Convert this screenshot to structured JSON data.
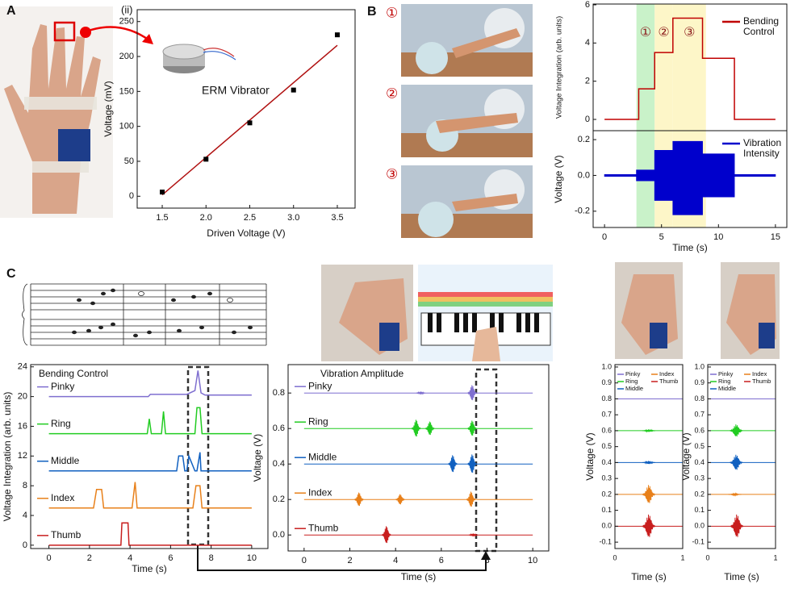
{
  "panel_labels": [
    "A",
    "B",
    "C"
  ],
  "photo_labels": [
    "①",
    "②",
    "③"
  ],
  "chart_data": [
    {
      "type": "scatter",
      "annotations": [
        "(ii)",
        "ERM Vibrator"
      ],
      "xlabel": "Driven Voltage (V)",
      "ylabel": "Voltage (mV)",
      "x": [
        1.5,
        2,
        2.5,
        3,
        3.5
      ],
      "values": [
        6,
        53,
        105,
        152,
        231
      ],
      "color": "#000000",
      "fit": {
        "x": [
          1.5,
          3.5
        ],
        "values": [
          2,
          216
        ],
        "color": "#b01010"
      },
      "xlim": [
        1.214,
        3.703
      ],
      "xticks": [
        1.5,
        {
          "value": 2,
          "label": "2.0"
        },
        2.5,
        {
          "value": 3,
          "label": "3.0"
        },
        3.5
      ],
      "ylim": [
        -17,
        267
      ],
      "yticks": [
        0,
        50,
        100,
        150,
        200,
        250
      ]
    },
    {
      "type": "line",
      "ylabel": "Voltage Integration (arb. units)",
      "xlim": [
        -1,
        16
      ],
      "ylim": [
        -0.59,
        6.04
      ],
      "yticks": [
        0,
        2,
        4,
        6
      ],
      "legend": "upper right",
      "regions": [
        {
          "xlim": [
            2.8,
            4.4
          ],
          "color": "#c9f2c9",
          "label": "①"
        },
        {
          "xlim": [
            4.4,
            6
          ],
          "color": "#fdf6c8",
          "label": "②"
        },
        {
          "xlim": [
            6,
            8.9
          ],
          "color": "#fdf6c8",
          "label": "③"
        }
      ],
      "series": [
        {
          "name": "Bending Control",
          "color": "#c00000",
          "x": [
            0,
            3,
            3,
            4.4,
            4.4,
            6,
            6,
            8.6,
            8.6,
            11.4,
            11.4,
            15
          ],
          "values": [
            0,
            0,
            1.6,
            1.6,
            3.5,
            3.5,
            5.3,
            5.3,
            3.2,
            3.2,
            0,
            0
          ]
        }
      ]
    },
    {
      "type": "area",
      "xlabel": "Time (s)",
      "ylabel": "Voltage (V)",
      "xlim": [
        -1,
        16
      ],
      "xticks": [
        0,
        5,
        10,
        15
      ],
      "ylim": [
        -0.291,
        0.25
      ],
      "yticks": [
        -0.2,
        {
          "value": 0,
          "label": "0.0"
        },
        0.2
      ],
      "legend": "upper right",
      "series": [
        {
          "name": "Vibration Intensity",
          "color": "#0000cc",
          "x": [
            0,
            2.8,
            2.8,
            4.4,
            4.4,
            6,
            6,
            8.6,
            8.6,
            11.4,
            11.4,
            15
          ],
          "upper": [
            0.005,
            0.005,
            0.03,
            0.03,
            0.14,
            0.14,
            0.19,
            0.19,
            0.12,
            0.12,
            0.005,
            0.005
          ],
          "lower": [
            -0.005,
            -0.005,
            -0.03,
            -0.03,
            -0.14,
            -0.14,
            -0.22,
            -0.22,
            -0.12,
            -0.12,
            -0.005,
            -0.005
          ]
        }
      ]
    },
    {
      "type": "line",
      "title": "Bending Control",
      "xlabel": "Time (s)",
      "ylabel": "Voltage Integration (arb. units)",
      "xlim": [
        -0.9,
        10.8
      ],
      "xticks": [
        0,
        2,
        4,
        6,
        8,
        10
      ],
      "ylim": [
        -0.45,
        24.3
      ],
      "yticks": [
        0,
        4,
        8,
        12,
        16,
        20,
        24
      ],
      "legend": "inline",
      "series": [
        {
          "name": "Pinky",
          "color": "#7f6fd0",
          "x": [
            0,
            4.9,
            5.0,
            6.8,
            7.2,
            7.35,
            7.5,
            7.7,
            10
          ],
          "values": [
            20,
            20,
            20.3,
            20.3,
            20.8,
            23.5,
            20.5,
            20.2,
            20.2
          ]
        },
        {
          "name": "Ring",
          "color": "#22cc22",
          "x": [
            0,
            4.85,
            4.95,
            5.05,
            5.55,
            5.65,
            5.75,
            7.2,
            7.3,
            7.45,
            7.55,
            10
          ],
          "values": [
            15,
            15,
            17,
            15,
            15,
            18,
            15,
            15,
            18.5,
            18.5,
            15,
            15
          ]
        },
        {
          "name": "Middle",
          "color": "#1060c0",
          "x": [
            0,
            6.3,
            6.4,
            6.6,
            6.7,
            6.8,
            6.9,
            7.2,
            7.3,
            7.45,
            7.5,
            10
          ],
          "values": [
            10,
            10,
            12,
            12,
            10,
            10,
            12,
            10,
            10,
            12.5,
            10,
            10
          ]
        },
        {
          "name": "Index",
          "color": "#e8801a",
          "x": [
            0,
            2.2,
            2.35,
            2.6,
            2.7,
            4.1,
            4.25,
            4.35,
            7.1,
            7.25,
            7.45,
            7.55,
            10
          ],
          "values": [
            5,
            5,
            7.5,
            7.5,
            5,
            5,
            8.5,
            5,
            5,
            8,
            8,
            5,
            5
          ]
        },
        {
          "name": "Thumb",
          "color": "#c81e1e",
          "x": [
            0,
            3.55,
            3.6,
            3.9,
            3.95,
            10
          ],
          "values": [
            0,
            0,
            3,
            3,
            0,
            0
          ]
        }
      ]
    },
    {
      "type": "waveform",
      "title": "Vibration Amplitude",
      "xlabel": "Time (s)",
      "ylabel": "Voltage (V)",
      "xlim": [
        -0.7,
        10.7
      ],
      "xticks": [
        0,
        2,
        4,
        6,
        8,
        10
      ],
      "ylim": [
        -0.09,
        0.96
      ],
      "yticks": [
        {
          "value": 0,
          "label": "0.0"
        },
        0.2,
        0.4,
        0.6,
        0.8
      ],
      "legend": "inline",
      "series": [
        {
          "name": "Pinky",
          "color": "#7f6fd0",
          "baseline": 0.8,
          "bursts": [
            {
              "x": 7.35,
              "amplitude": 0.045
            },
            {
              "x": 5.1,
              "amplitude": 0.008
            }
          ]
        },
        {
          "name": "Ring",
          "color": "#22cc22",
          "baseline": 0.6,
          "bursts": [
            {
              "x": 4.9,
              "amplitude": 0.05
            },
            {
              "x": 5.5,
              "amplitude": 0.04
            },
            {
              "x": 7.35,
              "amplitude": 0.045
            }
          ]
        },
        {
          "name": "Middle",
          "color": "#1060c0",
          "baseline": 0.4,
          "bursts": [
            {
              "x": 6.5,
              "amplitude": 0.05
            },
            {
              "x": 7.35,
              "amplitude": 0.055
            }
          ]
        },
        {
          "name": "Index",
          "color": "#e8801a",
          "baseline": 0.2,
          "bursts": [
            {
              "x": 2.4,
              "amplitude": 0.04
            },
            {
              "x": 4.2,
              "amplitude": 0.03
            },
            {
              "x": 7.3,
              "amplitude": 0.045
            }
          ]
        },
        {
          "name": "Thumb",
          "color": "#c81e1e",
          "baseline": 0,
          "bursts": [
            {
              "x": 3.6,
              "amplitude": 0.05
            },
            {
              "x": 7.4,
              "amplitude": 0.008
            }
          ]
        }
      ]
    },
    {
      "type": "waveform",
      "xlabel": "Time (s)",
      "ylabel": "Voltage (V)",
      "xlim": [
        0,
        1
      ],
      "xticks": [
        0,
        1
      ],
      "ylim": [
        -0.14,
        1.015
      ],
      "yticks": [
        -0.1,
        {
          "value": 0,
          "label": "0.0"
        },
        0.1,
        0.2,
        0.3,
        0.4,
        0.5,
        0.6,
        0.7,
        0.8,
        0.9,
        {
          "value": 1,
          "label": "1.0"
        }
      ],
      "legend": "upper left",
      "series": [
        {
          "name": "Pinky",
          "color": "#7f6fd0",
          "baseline": 0.8,
          "bursts": []
        },
        {
          "name": "Ring",
          "color": "#22cc22",
          "baseline": 0.6,
          "bursts": [
            {
              "x": 0.5,
              "amplitude": 0.008
            }
          ]
        },
        {
          "name": "Middle",
          "color": "#1060c0",
          "baseline": 0.4,
          "bursts": [
            {
              "x": 0.5,
              "amplitude": 0.01
            }
          ]
        },
        {
          "name": "Index",
          "color": "#e8801a",
          "baseline": 0.2,
          "bursts": [
            {
              "x": 0.5,
              "amplitude": 0.06
            }
          ]
        },
        {
          "name": "Thumb",
          "color": "#c81e1e",
          "baseline": 0,
          "bursts": [
            {
              "x": 0.5,
              "amplitude": 0.075
            }
          ]
        }
      ]
    },
    {
      "type": "waveform",
      "xlabel": "Time (s)",
      "ylabel": "Voltage (V)",
      "xlim": [
        0,
        1
      ],
      "xticks": [
        0,
        1
      ],
      "ylim": [
        -0.14,
        1.015
      ],
      "yticks": [
        -0.1,
        {
          "value": 0,
          "label": "0.0"
        },
        0.1,
        0.2,
        0.3,
        0.4,
        0.5,
        0.6,
        0.7,
        0.8,
        0.9,
        {
          "value": 1,
          "label": "1.0"
        }
      ],
      "legend": "upper left",
      "series": [
        {
          "name": "Pinky",
          "color": "#7f6fd0",
          "baseline": 0.8,
          "bursts": []
        },
        {
          "name": "Ring",
          "color": "#22cc22",
          "baseline": 0.6,
          "bursts": [
            {
              "x": 0.42,
              "amplitude": 0.04
            }
          ]
        },
        {
          "name": "Middle",
          "color": "#1060c0",
          "baseline": 0.4,
          "bursts": [
            {
              "x": 0.42,
              "amplitude": 0.05
            }
          ]
        },
        {
          "name": "Index",
          "color": "#e8801a",
          "baseline": 0.2,
          "bursts": [
            {
              "x": 0.4,
              "amplitude": 0.005
            }
          ]
        },
        {
          "name": "Thumb",
          "color": "#c81e1e",
          "baseline": 0,
          "bursts": [
            {
              "x": 0.43,
              "amplitude": 0.075
            }
          ]
        }
      ]
    }
  ]
}
